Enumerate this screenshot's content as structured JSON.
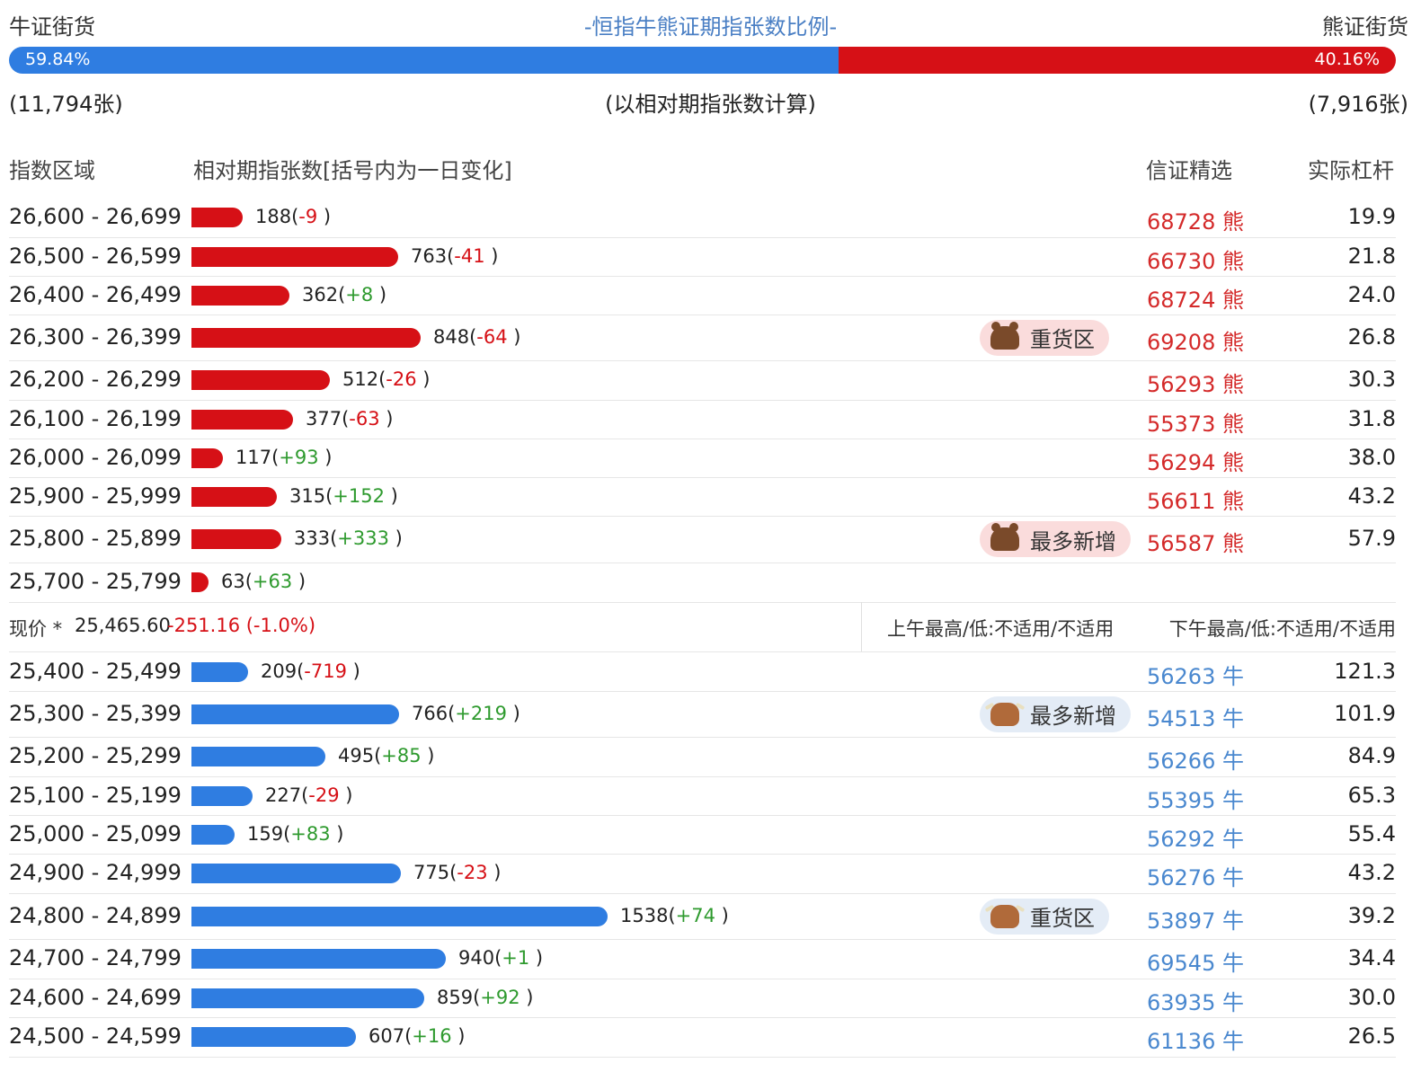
{
  "header": {
    "bull_side": "牛证街货",
    "bear_side": "熊证街货",
    "title": "-恒指牛熊证期指张数比例-",
    "bull_pct": 59.84,
    "bull_pct_label": "59.84%",
    "bear_pct_label": "40.16%",
    "bull_count": "(11,794张)",
    "bear_count": "(7,916张)",
    "count_note": "(以相对期指张数计算)"
  },
  "columns": {
    "range": "指数区域",
    "count": "相对期指张数[括号内为一日变化]",
    "pick": "信证精选",
    "leverage": "实际杠杆"
  },
  "colors": {
    "bull": "#2f7de1",
    "bear": "#d61016",
    "positive": "#2e9a2e",
    "negative": "#d61016"
  },
  "max_count": 1538,
  "bear_rows": [
    {
      "range": "26,600 - 26,699",
      "count": 188,
      "count_text": "188(",
      "change": "-9",
      "pick": "68728 熊",
      "leverage": "19.9",
      "tag": ""
    },
    {
      "range": "26,500 - 26,599",
      "count": 763,
      "count_text": "763(",
      "change": "-41",
      "pick": "66730 熊",
      "leverage": "21.8",
      "tag": ""
    },
    {
      "range": "26,400 - 26,499",
      "count": 362,
      "count_text": "362(",
      "change": "+8",
      "pick": "68724 熊",
      "leverage": "24.0",
      "tag": ""
    },
    {
      "range": "26,300 - 26,399",
      "count": 848,
      "count_text": "848(",
      "change": "-64",
      "pick": "69208 熊",
      "leverage": "26.8",
      "tag": "重货区"
    },
    {
      "range": "26,200 - 26,299",
      "count": 512,
      "count_text": "512(",
      "change": "-26",
      "pick": "56293 熊",
      "leverage": "30.3",
      "tag": ""
    },
    {
      "range": "26,100 - 26,199",
      "count": 377,
      "count_text": "377(",
      "change": "-63",
      "pick": "55373 熊",
      "leverage": "31.8",
      "tag": ""
    },
    {
      "range": "26,000 - 26,099",
      "count": 117,
      "count_text": "117(",
      "change": "+93",
      "pick": "56294 熊",
      "leverage": "38.0",
      "tag": ""
    },
    {
      "range": "25,900 - 25,999",
      "count": 315,
      "count_text": "315(",
      "change": "+152",
      "pick": "56611 熊",
      "leverage": "43.2",
      "tag": ""
    },
    {
      "range": "25,800 - 25,899",
      "count": 333,
      "count_text": "333(",
      "change": "+333",
      "pick": "56587 熊",
      "leverage": "57.9",
      "tag": "最多新增"
    },
    {
      "range": "25,700 - 25,799",
      "count": 63,
      "count_text": "63(",
      "change": "+63",
      "pick": "",
      "leverage": "",
      "tag": ""
    }
  ],
  "current": {
    "label": "现价 *",
    "price": "25,465.60",
    "change": "-251.16 (-1.0%)",
    "am": "上午最高/低:不适用/不适用",
    "pm": "下午最高/低:不适用/不适用"
  },
  "bull_rows": [
    {
      "range": "25,400 - 25,499",
      "count": 209,
      "count_text": "209(",
      "change": "-719",
      "pick": "56263 牛",
      "leverage": "121.3",
      "tag": ""
    },
    {
      "range": "25,300 - 25,399",
      "count": 766,
      "count_text": "766(",
      "change": "+219",
      "pick": "54513 牛",
      "leverage": "101.9",
      "tag": "最多新增"
    },
    {
      "range": "25,200 - 25,299",
      "count": 495,
      "count_text": "495(",
      "change": "+85",
      "pick": "56266 牛",
      "leverage": "84.9",
      "tag": ""
    },
    {
      "range": "25,100 - 25,199",
      "count": 227,
      "count_text": "227(",
      "change": "-29",
      "pick": "55395 牛",
      "leverage": "65.3",
      "tag": ""
    },
    {
      "range": "25,000 - 25,099",
      "count": 159,
      "count_text": "159(",
      "change": "+83",
      "pick": "56292 牛",
      "leverage": "55.4",
      "tag": ""
    },
    {
      "range": "24,900 - 24,999",
      "count": 775,
      "count_text": "775(",
      "change": "-23",
      "pick": "56276 牛",
      "leverage": "43.2",
      "tag": ""
    },
    {
      "range": "24,800 - 24,899",
      "count": 1538,
      "count_text": "1538(",
      "change": "+74",
      "pick": "53897 牛",
      "leverage": "39.2",
      "tag": "重货区"
    },
    {
      "range": "24,700 - 24,799",
      "count": 940,
      "count_text": "940(",
      "change": "+1",
      "pick": "69545 牛",
      "leverage": "34.4",
      "tag": ""
    },
    {
      "range": "24,600 - 24,699",
      "count": 859,
      "count_text": "859(",
      "change": "+92",
      "pick": "63935 牛",
      "leverage": "30.0",
      "tag": ""
    },
    {
      "range": "24,500 - 24,599",
      "count": 607,
      "count_text": "607(",
      "change": "+16",
      "pick": "61136 牛",
      "leverage": "26.5",
      "tag": ""
    }
  ]
}
